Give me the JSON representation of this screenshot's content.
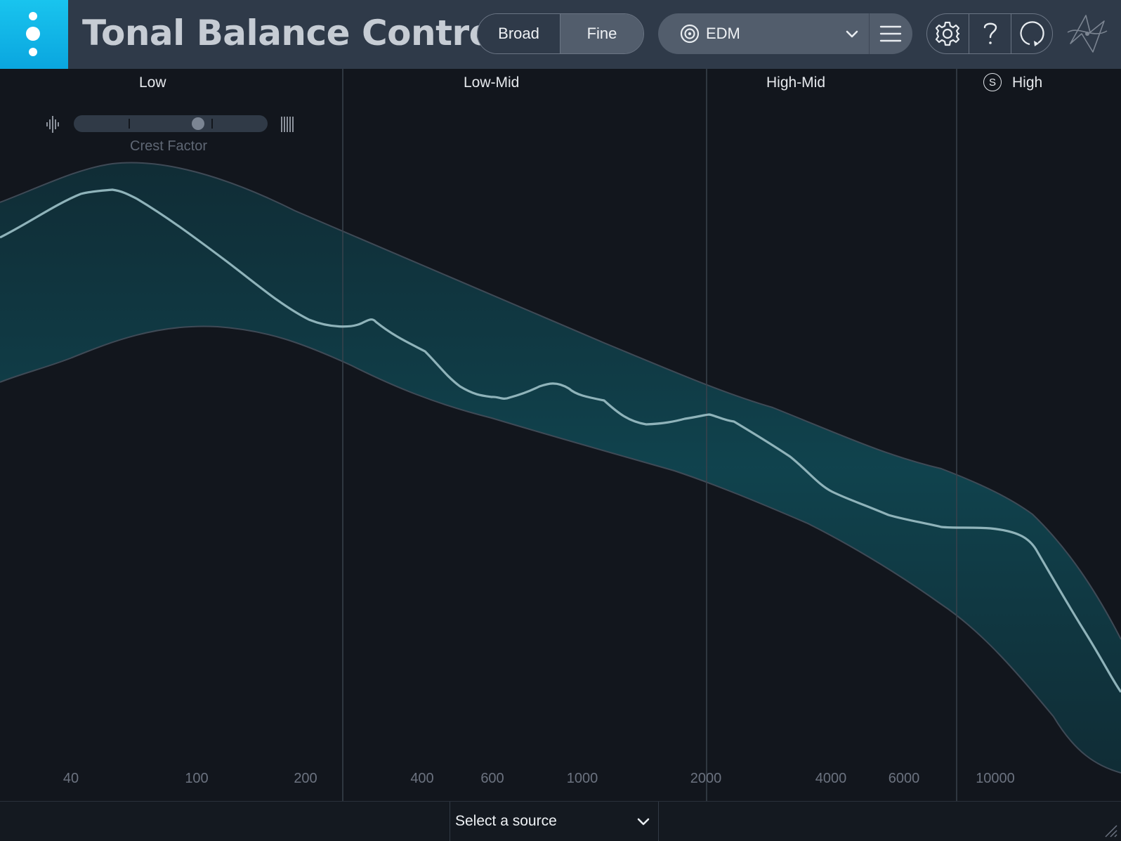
{
  "app": {
    "title": "Tonal Balance Control"
  },
  "view_toggle": {
    "broad_label": "Broad",
    "fine_label": "Fine",
    "active": "Fine"
  },
  "preset": {
    "selected": "EDM"
  },
  "crest_factor": {
    "label": "Crest Factor",
    "value": 0.65
  },
  "bands": [
    {
      "label": "Low"
    },
    {
      "label": "Low-Mid"
    },
    {
      "label": "High-Mid"
    },
    {
      "label": "High",
      "solo_badge": "S"
    }
  ],
  "freq_axis": [
    "40",
    "100",
    "200",
    "400",
    "600",
    "1000",
    "2000",
    "4000",
    "6000",
    "10000"
  ],
  "footer": {
    "source_placeholder": "Select a source"
  },
  "colors": {
    "accent": "#0fb6e8",
    "band_fill": "#0f3f4a",
    "curve": "#8fb3ba"
  },
  "icons": [
    "kebab-menu-icon",
    "target-icon",
    "chevron-down-icon",
    "hamburger-menu-icon",
    "gear-icon",
    "help-icon",
    "reset-icon",
    "izotope-logo-icon",
    "transient-icon",
    "sustain-icon",
    "resize-grip-icon"
  ]
}
